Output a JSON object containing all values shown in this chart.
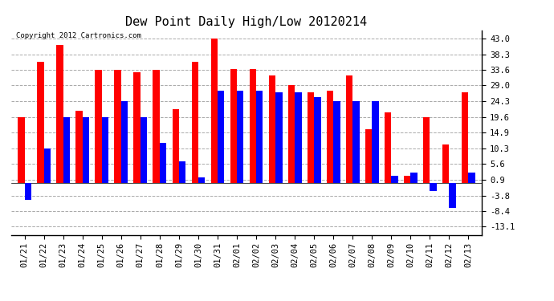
{
  "title": "Dew Point Daily High/Low 20120214",
  "copyright": "Copyright 2012 Cartronics.com",
  "dates": [
    "01/21",
    "01/22",
    "01/23",
    "01/24",
    "01/25",
    "01/26",
    "01/27",
    "01/28",
    "01/29",
    "01/30",
    "01/31",
    "02/01",
    "02/02",
    "02/03",
    "02/04",
    "02/05",
    "02/06",
    "02/07",
    "02/08",
    "02/09",
    "02/10",
    "02/11",
    "02/12",
    "02/13"
  ],
  "highs": [
    19.6,
    36.0,
    41.0,
    21.5,
    33.6,
    33.6,
    33.0,
    33.6,
    22.0,
    36.0,
    43.0,
    34.0,
    34.0,
    32.0,
    29.0,
    27.0,
    27.5,
    32.0,
    16.0,
    21.0,
    2.0,
    19.6,
    11.5,
    27.0
  ],
  "lows": [
    -5.0,
    10.3,
    19.6,
    19.6,
    19.6,
    24.3,
    19.6,
    12.0,
    6.5,
    1.5,
    27.5,
    27.5,
    27.5,
    27.0,
    27.0,
    25.5,
    24.3,
    24.3,
    24.3,
    2.0,
    3.0,
    -2.5,
    -7.5,
    3.0
  ],
  "high_color": "#ff0000",
  "low_color": "#0000ff",
  "bg_color": "#ffffff",
  "yticks": [
    43.0,
    38.3,
    33.6,
    29.0,
    24.3,
    19.6,
    14.9,
    10.3,
    5.6,
    0.9,
    -3.8,
    -8.4,
    -13.1
  ],
  "ylim": [
    -15.5,
    45.5
  ],
  "grid_color": "#aaaaaa",
  "title_fontsize": 11,
  "tick_fontsize": 7.5,
  "bar_width": 0.35,
  "figwidth": 6.9,
  "figheight": 3.75,
  "dpi": 100
}
